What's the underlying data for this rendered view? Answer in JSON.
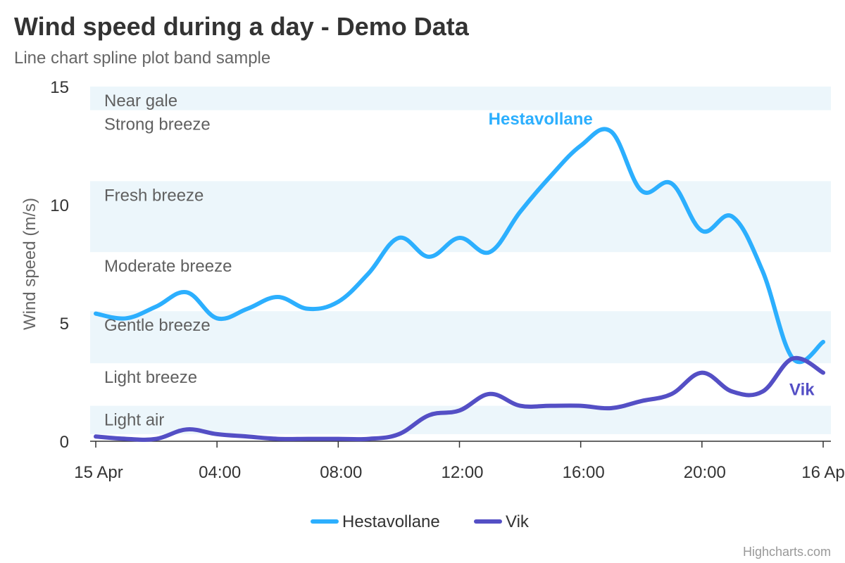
{
  "chart_data": {
    "type": "line",
    "title": "Wind speed during a day - Demo Data",
    "subtitle": "Line chart spline plot band sample",
    "ylabel": "Wind speed (m/s)",
    "xlabel": "",
    "ylim": [
      0,
      15
    ],
    "y_ticks": [
      0,
      5,
      10,
      15
    ],
    "x_range_hours": [
      0,
      24
    ],
    "x_ticks": [
      {
        "hour": 0,
        "label": "15 Apr"
      },
      {
        "hour": 4,
        "label": "04:00"
      },
      {
        "hour": 8,
        "label": "08:00"
      },
      {
        "hour": 12,
        "label": "12:00"
      },
      {
        "hour": 16,
        "label": "16:00"
      },
      {
        "hour": 20,
        "label": "20:00"
      },
      {
        "hour": 24,
        "label": "16 Apr"
      }
    ],
    "plot_bands": [
      {
        "from": 0.3,
        "to": 1.5,
        "label": "Light air",
        "shaded": true
      },
      {
        "from": 1.5,
        "to": 3.3,
        "label": "Light breeze",
        "shaded": false
      },
      {
        "from": 3.3,
        "to": 5.5,
        "label": "Gentle breeze",
        "shaded": true
      },
      {
        "from": 5.5,
        "to": 8.0,
        "label": "Moderate breeze",
        "shaded": false
      },
      {
        "from": 8.0,
        "to": 11.0,
        "label": "Fresh breeze",
        "shaded": true
      },
      {
        "from": 11.0,
        "to": 14.0,
        "label": "Strong breeze",
        "shaded": false
      },
      {
        "from": 14.0,
        "to": 15.0,
        "label": "Near gale",
        "shaded": true
      }
    ],
    "series": [
      {
        "name": "Hestavollane",
        "color": "#2caffe",
        "x_hours": [
          0,
          1,
          2,
          3,
          4,
          5,
          6,
          7,
          8,
          9,
          10,
          11,
          12,
          13,
          14,
          15,
          16,
          17,
          18,
          19,
          20,
          21,
          22,
          23,
          24
        ],
        "values": [
          5.4,
          5.2,
          5.7,
          6.3,
          5.2,
          5.6,
          6.1,
          5.6,
          5.9,
          7.1,
          8.6,
          7.8,
          8.6,
          8.0,
          9.7,
          11.2,
          12.5,
          13.1,
          10.6,
          10.9,
          8.9,
          9.5,
          7.2,
          3.5,
          4.2
        ]
      },
      {
        "name": "Vik",
        "color": "#544fc5",
        "x_hours": [
          0,
          1,
          2,
          3,
          4,
          5,
          6,
          7,
          8,
          9,
          10,
          11,
          12,
          13,
          14,
          15,
          16,
          17,
          18,
          19,
          20,
          21,
          22,
          23,
          24
        ],
        "values": [
          0.2,
          0.1,
          0.1,
          0.5,
          0.3,
          0.2,
          0.1,
          0.1,
          0.1,
          0.1,
          0.3,
          1.1,
          1.3,
          2.0,
          1.5,
          1.5,
          1.5,
          1.4,
          1.7,
          2.0,
          2.9,
          2.1,
          2.1,
          3.5,
          2.9
        ]
      }
    ],
    "legend_position": "bottom-center"
  },
  "credits": "Highcharts.com"
}
